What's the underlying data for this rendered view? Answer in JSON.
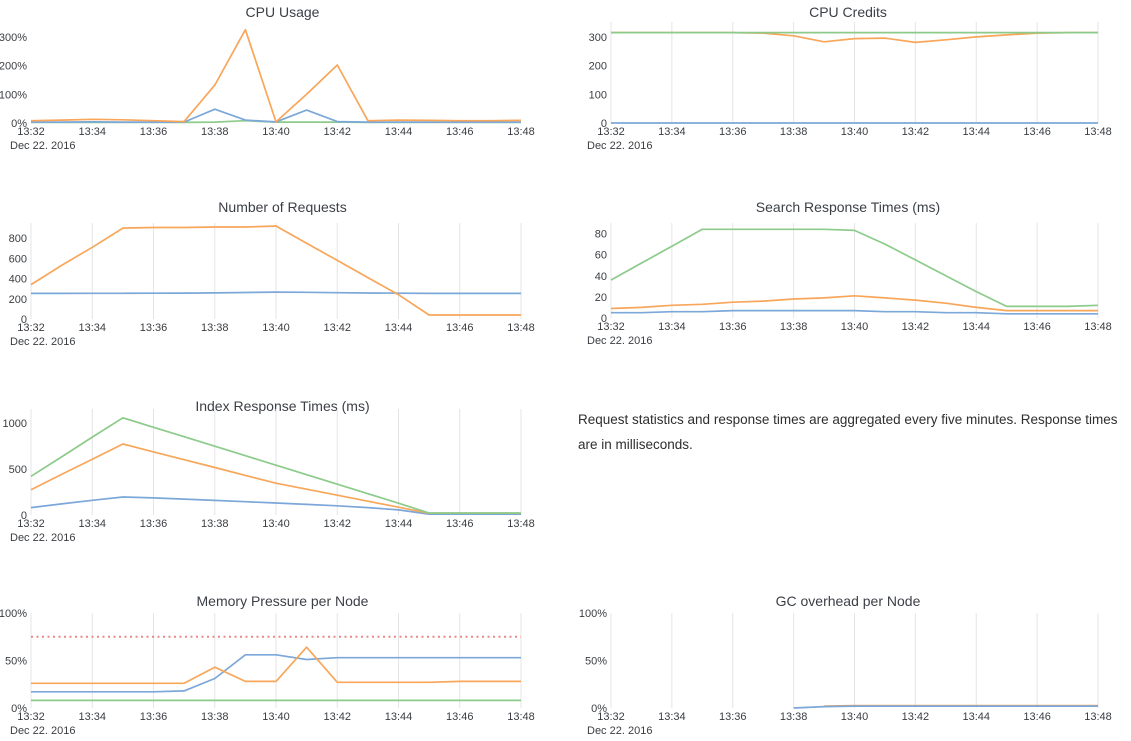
{
  "page": {
    "note": "Request statistics and response times are aggregated every five minutes. Response times are in milliseconds."
  },
  "colors": {
    "blue": "#7ca7d9",
    "orange": "#f8a65a",
    "green": "#8ccb8a",
    "red": "#ed868a",
    "grid": "#e4e4e4",
    "tick_text": "#3a3d42",
    "title_text": "#3b3f46"
  },
  "chart_data": [
    {
      "title": "CPU Usage",
      "type": "line",
      "grid": false,
      "legend": "none",
      "x_ticks": [
        "13:32",
        "13:34",
        "13:36",
        "13:38",
        "13:40",
        "13:42",
        "13:44",
        "13:46",
        "13:48"
      ],
      "x_annotation": "Dec 22. 2016",
      "ylim": [
        0,
        352
      ],
      "yticks": [
        {
          "v": 0,
          "label": "0%"
        },
        {
          "v": 100,
          "label": "100%"
        },
        {
          "v": 200,
          "label": "200%"
        },
        {
          "v": 300,
          "label": "300%"
        }
      ],
      "series": [
        {
          "color": "green",
          "values": [
            2,
            2,
            2,
            2,
            2,
            2,
            3,
            8,
            3,
            3,
            3,
            2,
            2,
            2,
            2,
            2,
            2
          ]
        },
        {
          "color": "blue",
          "values": [
            3,
            3,
            4,
            3,
            3,
            3,
            48,
            10,
            4,
            45,
            5,
            3,
            3,
            3,
            3,
            3,
            3
          ]
        },
        {
          "color": "orange",
          "values": [
            8,
            10,
            13,
            11,
            8,
            5,
            132,
            325,
            4,
            100,
            202,
            8,
            10,
            9,
            8,
            8,
            9
          ]
        }
      ]
    },
    {
      "title": "CPU Credits",
      "type": "line",
      "grid": true,
      "legend": "none",
      "x_ticks": [
        "13:32",
        "13:34",
        "13:36",
        "13:38",
        "13:40",
        "13:42",
        "13:44",
        "13:46",
        "13:48"
      ],
      "x_annotation": "Dec 22. 2016",
      "ylim": [
        0,
        352
      ],
      "yticks": [
        {
          "v": 0,
          "label": "0"
        },
        {
          "v": 100,
          "label": "100"
        },
        {
          "v": 200,
          "label": "200"
        },
        {
          "v": 300,
          "label": "300"
        }
      ],
      "series": [
        {
          "color": "blue",
          "values": [
            0,
            0,
            0,
            0,
            0,
            0,
            0,
            0,
            0,
            0,
            0,
            0,
            0,
            0,
            0,
            0,
            0
          ]
        },
        {
          "color": "orange",
          "values": [
            315,
            315,
            315,
            315,
            315,
            313,
            304,
            283,
            294,
            296,
            281,
            290,
            300,
            307,
            313,
            315,
            315
          ]
        },
        {
          "color": "green",
          "values": [
            315,
            315,
            315,
            315,
            315,
            315,
            315,
            315,
            315,
            315,
            315,
            315,
            315,
            315,
            315,
            315,
            315
          ]
        }
      ]
    },
    {
      "title": "Number of Requests",
      "type": "line",
      "grid": true,
      "legend": "none",
      "x_ticks": [
        "13:32",
        "13:34",
        "13:36",
        "13:38",
        "13:40",
        "13:42",
        "13:44",
        "13:46",
        "13:48"
      ],
      "x_annotation": "Dec 22. 2016",
      "ylim": [
        0,
        950
      ],
      "yticks": [
        {
          "v": 0,
          "label": "0"
        },
        {
          "v": 200,
          "label": "200"
        },
        {
          "v": 400,
          "label": "400"
        },
        {
          "v": 600,
          "label": "600"
        },
        {
          "v": 800,
          "label": "800"
        }
      ],
      "series": [
        {
          "color": "blue",
          "values": [
            253,
            253,
            254,
            254,
            255,
            256,
            258,
            262,
            266,
            264,
            260,
            257,
            255,
            253,
            253,
            253,
            253
          ]
        },
        {
          "color": "orange",
          "values": [
            340,
            530,
            710,
            900,
            905,
            905,
            910,
            910,
            920,
            750,
            580,
            410,
            240,
            40,
            40,
            40,
            40
          ]
        }
      ]
    },
    {
      "title": "Search Response Times (ms)",
      "type": "line",
      "grid": true,
      "legend": "none",
      "x_ticks": [
        "13:32",
        "13:34",
        "13:36",
        "13:38",
        "13:40",
        "13:42",
        "13:44",
        "13:46",
        "13:48"
      ],
      "x_annotation": "Dec 22. 2016",
      "ylim": [
        0,
        90
      ],
      "yticks": [
        {
          "v": 0,
          "label": "0"
        },
        {
          "v": 20,
          "label": "20"
        },
        {
          "v": 40,
          "label": "40"
        },
        {
          "v": 60,
          "label": "60"
        },
        {
          "v": 80,
          "label": "80"
        }
      ],
      "series": [
        {
          "color": "blue",
          "values": [
            5,
            5,
            6,
            6,
            7,
            7,
            7,
            7,
            7,
            6,
            6,
            5,
            5,
            4,
            4,
            4,
            4
          ]
        },
        {
          "color": "orange",
          "values": [
            9,
            10,
            12,
            13,
            15,
            16,
            18,
            19,
            21,
            19,
            17,
            14,
            10,
            7,
            7,
            7,
            7
          ]
        },
        {
          "color": "green",
          "values": [
            36,
            52,
            68,
            84,
            84,
            84,
            84,
            84,
            83,
            70,
            55,
            40,
            25,
            11,
            11,
            11,
            12
          ]
        }
      ]
    },
    {
      "title": "Index Response Times (ms)",
      "type": "line",
      "grid": true,
      "legend": "none",
      "x_ticks": [
        "13:32",
        "13:34",
        "13:36",
        "13:38",
        "13:40",
        "13:42",
        "13:44",
        "13:46",
        "13:48"
      ],
      "x_annotation": "Dec 22. 2016",
      "ylim": [
        0,
        1150
      ],
      "yticks": [
        {
          "v": 0,
          "label": "0"
        },
        {
          "v": 500,
          "label": "500"
        },
        {
          "v": 1000,
          "label": "1000"
        }
      ],
      "series": [
        {
          "color": "blue",
          "values": [
            80,
            120,
            160,
            195,
            185,
            172,
            158,
            144,
            130,
            115,
            100,
            80,
            55,
            10,
            10,
            10,
            10
          ]
        },
        {
          "color": "orange",
          "values": [
            275,
            440,
            605,
            770,
            685,
            600,
            515,
            430,
            345,
            280,
            215,
            150,
            85,
            20,
            20,
            20,
            20
          ]
        },
        {
          "color": "green",
          "values": [
            420,
            630,
            845,
            1055,
            952,
            849,
            746,
            643,
            540,
            437,
            334,
            231,
            128,
            22,
            22,
            22,
            22
          ]
        }
      ]
    },
    {
      "title": "Memory Pressure per Node",
      "type": "line",
      "grid": true,
      "legend": "none",
      "x_ticks": [
        "13:32",
        "13:34",
        "13:36",
        "13:38",
        "13:40",
        "13:42",
        "13:44",
        "13:46",
        "13:48"
      ],
      "x_annotation": "Dec 22. 2016",
      "ylim": [
        0,
        100
      ],
      "yticks": [
        {
          "v": 0,
          "label": "0%"
        },
        {
          "v": 50,
          "label": "50%"
        },
        {
          "v": 100,
          "label": "100%"
        }
      ],
      "series": [
        {
          "color": "green",
          "values": [
            8,
            8,
            8,
            8,
            8,
            8,
            8,
            8,
            8,
            8,
            8,
            8,
            8,
            8,
            8,
            8,
            8
          ]
        },
        {
          "color": "blue",
          "values": [
            17,
            17,
            17,
            17,
            17,
            18,
            31,
            56,
            56,
            51,
            53,
            53,
            53,
            53,
            53,
            53,
            53
          ]
        },
        {
          "color": "orange",
          "values": [
            26,
            26,
            26,
            26,
            26,
            26,
            43,
            28,
            28,
            64,
            27,
            27,
            27,
            27,
            28,
            28,
            28
          ]
        },
        {
          "color": "red",
          "dash": true,
          "values": [
            75,
            75,
            75,
            75,
            75,
            75,
            75,
            75,
            75,
            75,
            75,
            75,
            75,
            75,
            75,
            75,
            75
          ]
        }
      ]
    },
    {
      "title": "GC overhead per Node",
      "type": "line",
      "grid": true,
      "legend": "none",
      "x_ticks": [
        "13:32",
        "13:34",
        "13:36",
        "13:38",
        "13:40",
        "13:42",
        "13:44",
        "13:46",
        "13:48"
      ],
      "x_annotation": "Dec 22. 2016",
      "ylim": [
        0,
        100
      ],
      "yticks": [
        {
          "v": 0,
          "label": "0%"
        },
        {
          "v": 50,
          "label": "50%"
        },
        {
          "v": 100,
          "label": "100%"
        }
      ],
      "series": [
        {
          "color": "orange",
          "values": [
            null,
            null,
            null,
            null,
            null,
            null,
            null,
            2,
            2.5,
            2.5,
            2.5,
            2.5,
            2.5,
            2.5,
            2.5,
            2.5,
            2.5
          ]
        },
        {
          "color": "blue",
          "values": [
            null,
            null,
            null,
            null,
            null,
            null,
            0,
            1.5,
            2,
            2,
            2,
            2,
            2,
            2,
            2,
            2,
            2
          ]
        }
      ]
    }
  ]
}
